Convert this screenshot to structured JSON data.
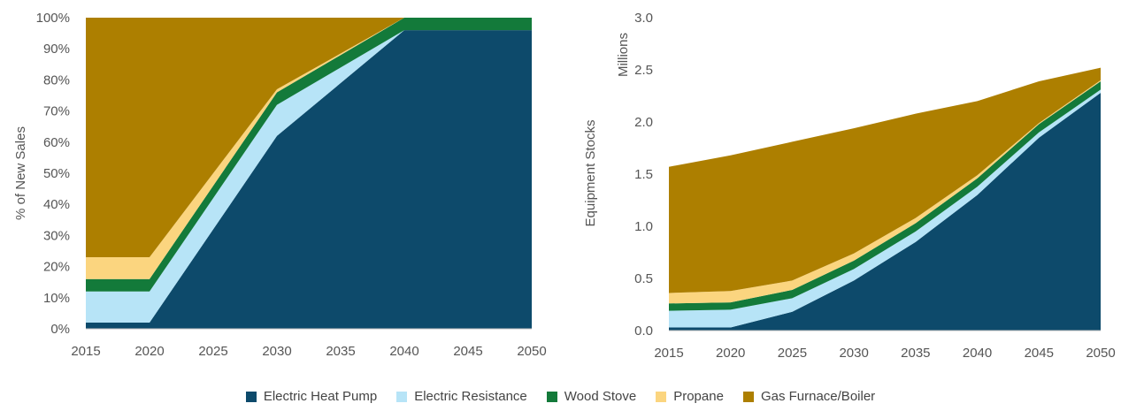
{
  "colors": {
    "Electric Heat Pump": "#0d4a6b",
    "Electric Resistance": "#b7e4f7",
    "Wood Stove": "#137a3a",
    "Propane": "#fbd57f",
    "Gas Furnace/Boiler": "#ad7f00"
  },
  "legend": [
    {
      "label": "Electric Heat Pump",
      "key": "Electric Heat Pump"
    },
    {
      "label": "Electric Resistance",
      "key": "Electric Resistance"
    },
    {
      "label": "Wood Stove",
      "key": "Wood Stove"
    },
    {
      "label": "Propane",
      "key": "Propane"
    },
    {
      "label": "Gas Furnace/Boiler",
      "key": "Gas Furnace/Boiler"
    }
  ],
  "chart_data": [
    {
      "type": "area",
      "stacked": true,
      "title": "",
      "xlabel": "",
      "ylabel": "% of New Sales",
      "ylim": [
        0,
        100
      ],
      "yticks": [
        "0%",
        "10%",
        "20%",
        "30%",
        "40%",
        "50%",
        "60%",
        "70%",
        "80%",
        "90%",
        "100%"
      ],
      "xticks": [
        "2015",
        "2020",
        "2025",
        "2030",
        "2035",
        "2040",
        "2045",
        "2050"
      ],
      "x": [
        2015,
        2020,
        2030,
        2040,
        2050
      ],
      "series": [
        {
          "name": "Electric Heat Pump",
          "values": [
            2,
            2,
            62,
            96,
            96
          ]
        },
        {
          "name": "Electric Resistance",
          "values": [
            10,
            10,
            10,
            0,
            0
          ]
        },
        {
          "name": "Wood Stove",
          "values": [
            4,
            4,
            4,
            4,
            4
          ]
        },
        {
          "name": "Propane",
          "values": [
            7,
            7,
            1,
            0,
            0
          ]
        },
        {
          "name": "Gas Furnace/Boiler",
          "values": [
            77,
            77,
            23,
            0,
            0
          ]
        }
      ],
      "grid": false,
      "legend": "bottom"
    },
    {
      "type": "area",
      "stacked": true,
      "title": "",
      "xlabel": "",
      "ylabel": "Equipment Stocks",
      "unit_label": "Millions",
      "ylim": [
        0,
        3.0
      ],
      "yticks": [
        "0.0",
        "0.5",
        "1.0",
        "1.5",
        "2.0",
        "2.5",
        "3.0"
      ],
      "xticks": [
        "2015",
        "2020",
        "2025",
        "2030",
        "2035",
        "2040",
        "2045",
        "2050"
      ],
      "x": [
        2015,
        2020,
        2025,
        2030,
        2035,
        2040,
        2045,
        2050
      ],
      "series": [
        {
          "name": "Electric Heat Pump",
          "values": [
            0.03,
            0.03,
            0.18,
            0.48,
            0.85,
            1.3,
            1.85,
            2.28
          ]
        },
        {
          "name": "Electric Resistance",
          "values": [
            0.16,
            0.17,
            0.13,
            0.11,
            0.1,
            0.08,
            0.05,
            0.03
          ]
        },
        {
          "name": "Wood Stove",
          "values": [
            0.07,
            0.07,
            0.08,
            0.08,
            0.08,
            0.08,
            0.08,
            0.08
          ]
        },
        {
          "name": "Propane",
          "values": [
            0.1,
            0.11,
            0.09,
            0.07,
            0.05,
            0.03,
            0.01,
            0.01
          ]
        },
        {
          "name": "Gas Furnace/Boiler",
          "values": [
            1.21,
            1.3,
            1.33,
            1.2,
            1.0,
            0.71,
            0.4,
            0.12
          ]
        }
      ],
      "grid": false,
      "legend": "bottom"
    }
  ]
}
